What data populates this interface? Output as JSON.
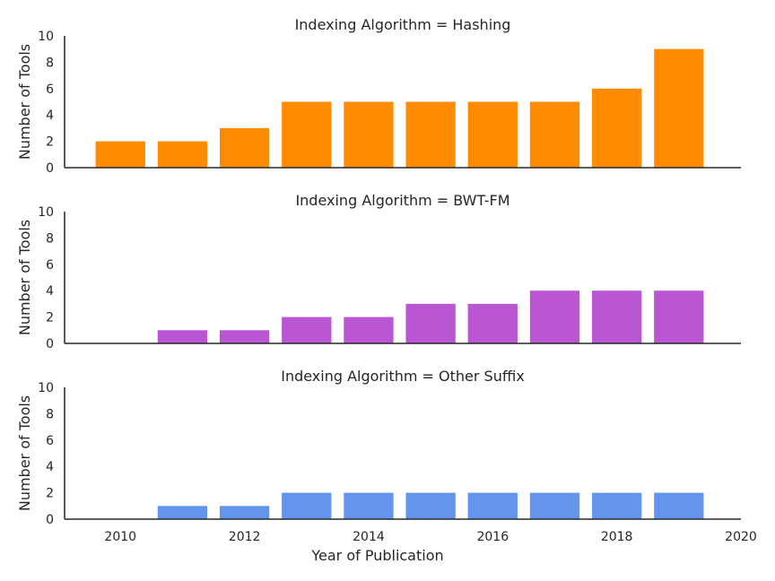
{
  "chart_data": [
    {
      "type": "bar",
      "title": "Indexing Algorithm = Hashing",
      "ylabel": "Number of Tools",
      "xlabel": "",
      "x": [
        2010,
        2011,
        2012,
        2013,
        2014,
        2015,
        2016,
        2017,
        2018,
        2019
      ],
      "values": [
        2,
        2,
        3,
        5,
        5,
        5,
        5,
        5,
        6,
        9
      ],
      "ylim": [
        0,
        10
      ],
      "yticks": [
        0,
        2,
        4,
        6,
        8,
        10
      ],
      "color": "#ff8c00"
    },
    {
      "type": "bar",
      "title": "Indexing Algorithm = BWT-FM",
      "ylabel": "Number of Tools",
      "xlabel": "",
      "x": [
        2011,
        2012,
        2013,
        2014,
        2015,
        2016,
        2017,
        2018,
        2019
      ],
      "values": [
        1,
        1,
        2,
        2,
        3,
        3,
        4,
        4,
        4
      ],
      "ylim": [
        0,
        10
      ],
      "yticks": [
        0,
        2,
        4,
        6,
        8,
        10
      ],
      "color": "#ba55d3"
    },
    {
      "type": "bar",
      "title": "Indexing Algorithm = Other Suffix",
      "ylabel": "Number of Tools",
      "xlabel": "Year of Publication",
      "x": [
        2011,
        2012,
        2013,
        2014,
        2015,
        2016,
        2017,
        2018,
        2019
      ],
      "values": [
        1,
        1,
        2,
        2,
        2,
        2,
        2,
        2,
        2
      ],
      "ylim": [
        0,
        10
      ],
      "yticks": [
        0,
        2,
        4,
        6,
        8,
        10
      ],
      "xlim": [
        2009.1,
        2020
      ],
      "xticks": [
        2010,
        2012,
        2014,
        2016,
        2018,
        2020
      ],
      "color": "#6495ed"
    }
  ]
}
